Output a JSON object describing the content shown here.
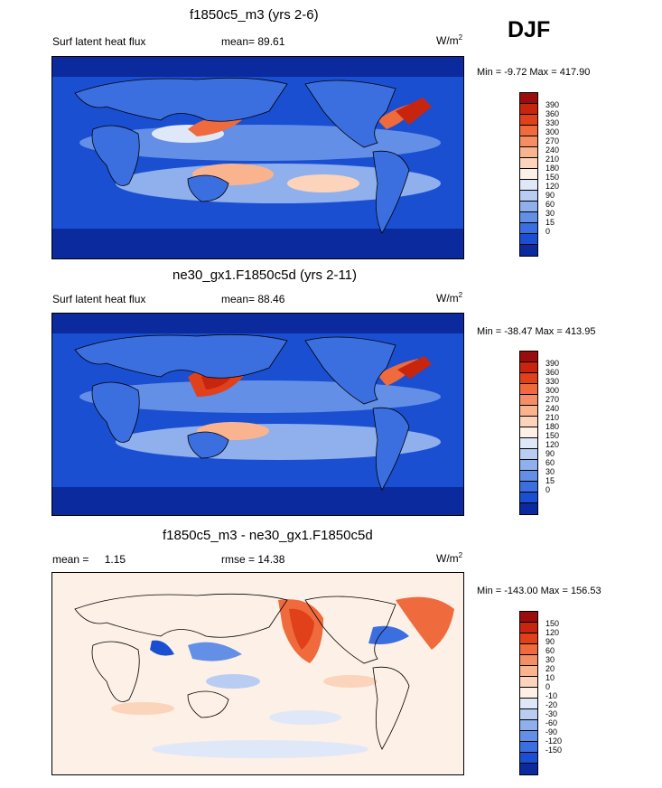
{
  "season": "DJF",
  "panels": [
    {
      "title": "f1850c5_m3 (yrs 2-6)",
      "left_label": "Surf latent heat flux",
      "stat_label": "mean=",
      "stat_value": "89.61",
      "units": "W/m",
      "units_sup": "2",
      "minmax": "Min = -9.72 Max = 417.90"
    },
    {
      "title": "ne30_gx1.F1850c5d (yrs 2-11)",
      "left_label": "Surf latent heat flux",
      "stat_label": "mean=",
      "stat_value": "88.46",
      "units": "W/m",
      "units_sup": "2",
      "minmax": "Min = -38.47 Max = 413.95"
    },
    {
      "title": "f1850c5_m3 - ne30_gx1.F1850c5d",
      "left_label": "mean =",
      "left_value": "1.15",
      "stat_label": "rmse =",
      "stat_value": "14.38",
      "units": "W/m",
      "units_sup": "2",
      "minmax": "Min = -143.00 Max = 156.53"
    }
  ],
  "chart_data": [
    {
      "type": "heatmap",
      "title": "f1850c5_m3 (yrs 2-6)",
      "variable": "Surf latent heat flux",
      "mean": 89.61,
      "units": "W/m2",
      "min": -9.72,
      "max": 417.9,
      "colorbar_levels": [
        "390",
        "360",
        "330",
        "300",
        "270",
        "240",
        "210",
        "180",
        "150",
        "120",
        "90",
        "60",
        "30",
        "15",
        "0"
      ],
      "colorbar_colors": [
        "#9b0d0d",
        "#c8250e",
        "#e0401a",
        "#ef6a3d",
        "#f58e64",
        "#f9b38f",
        "#fbd4bb",
        "#fdf0e6",
        "#dfe8f8",
        "#b9cdf2",
        "#8fb0ec",
        "#6390e6",
        "#3b6fe0",
        "#1b4fd1",
        "#0a2a9e"
      ]
    },
    {
      "type": "heatmap",
      "title": "ne30_gx1.F1850c5d (yrs 2-11)",
      "variable": "Surf latent heat flux",
      "mean": 88.46,
      "units": "W/m2",
      "min": -38.47,
      "max": 413.95,
      "colorbar_levels": [
        "390",
        "360",
        "330",
        "300",
        "270",
        "240",
        "210",
        "180",
        "150",
        "120",
        "90",
        "60",
        "30",
        "15",
        "0"
      ],
      "colorbar_colors": [
        "#9b0d0d",
        "#c8250e",
        "#e0401a",
        "#ef6a3d",
        "#f58e64",
        "#f9b38f",
        "#fbd4bb",
        "#fdf0e6",
        "#dfe8f8",
        "#b9cdf2",
        "#8fb0ec",
        "#6390e6",
        "#3b6fe0",
        "#1b4fd1",
        "#0a2a9e"
      ]
    },
    {
      "type": "heatmap",
      "title": "f1850c5_m3 - ne30_gx1.F1850c5d",
      "mean": 1.15,
      "rmse": 14.38,
      "units": "W/m2",
      "min": -143.0,
      "max": 156.53,
      "colorbar_levels": [
        "150",
        "120",
        "90",
        "60",
        "30",
        "20",
        "10",
        "0",
        "-10",
        "-20",
        "-30",
        "-60",
        "-90",
        "-120",
        "-150"
      ],
      "colorbar_colors": [
        "#9b0d0d",
        "#c8250e",
        "#e0401a",
        "#ef6a3d",
        "#f58e64",
        "#f9b38f",
        "#fbd4bb",
        "#fdf0e6",
        "#dfe8f8",
        "#b9cdf2",
        "#8fb0ec",
        "#6390e6",
        "#3b6fe0",
        "#1b4fd1",
        "#0a2a9e"
      ]
    }
  ]
}
